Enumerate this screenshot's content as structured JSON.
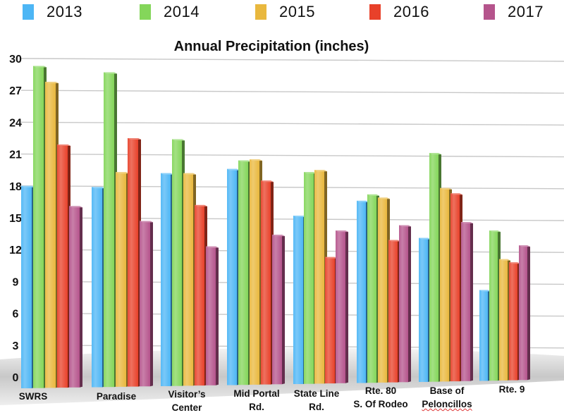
{
  "chart_data": {
    "type": "bar",
    "title": "Annual Precipitation (inches)",
    "xlabel": "",
    "ylabel": "",
    "ylim": [
      0,
      30
    ],
    "yticks": [
      0,
      3,
      6,
      9,
      12,
      15,
      18,
      21,
      24,
      27,
      30
    ],
    "grid": true,
    "legend_position": "top",
    "categories": [
      [
        "SWRS"
      ],
      [
        "Paradise"
      ],
      [
        "Visitor’s",
        "Center"
      ],
      [
        "Mid Portal",
        "Rd."
      ],
      [
        "State Line",
        "Rd."
      ],
      [
        "Rte. 80",
        "S. Of Rodeo"
      ],
      [
        "Base of",
        "Peloncillos"
      ],
      [
        "Rte. 9"
      ]
    ],
    "series": [
      {
        "name": "2013",
        "color": "#4DB6F5",
        "values": [
          18.0,
          17.9,
          19.2,
          19.6,
          15.2,
          16.6,
          13.1,
          8.2
        ]
      },
      {
        "name": "2014",
        "color": "#84D65A",
        "values": [
          29.3,
          28.7,
          22.4,
          20.4,
          19.3,
          17.2,
          21.1,
          13.8
        ]
      },
      {
        "name": "2015",
        "color": "#E9B83E",
        "values": [
          27.8,
          19.3,
          19.2,
          20.5,
          19.5,
          16.9,
          17.8,
          11.1
        ]
      },
      {
        "name": "2016",
        "color": "#E8412A",
        "values": [
          21.9,
          22.5,
          16.2,
          18.5,
          11.3,
          12.9,
          17.3,
          10.8
        ]
      },
      {
        "name": "2017",
        "color": "#B5548C",
        "values": [
          16.1,
          14.7,
          12.3,
          13.4,
          13.8,
          14.3,
          14.6,
          12.4
        ]
      }
    ]
  }
}
